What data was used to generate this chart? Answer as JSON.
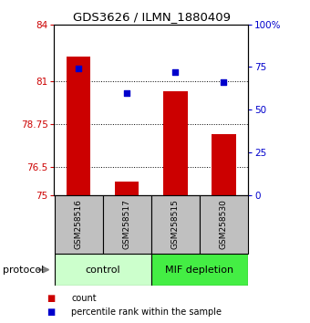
{
  "title": "GDS3626 / ILMN_1880409",
  "samples": [
    "GSM258516",
    "GSM258517",
    "GSM258515",
    "GSM258530"
  ],
  "bar_values": [
    82.3,
    75.72,
    80.5,
    78.2
  ],
  "percentile_values": [
    74,
    60,
    72,
    66
  ],
  "bar_color": "#cc0000",
  "percentile_color": "#0000cc",
  "ymin": 75,
  "ymax": 84,
  "yticks_left": [
    75,
    76.5,
    78.75,
    81,
    84
  ],
  "yticks_left_labels": [
    "75",
    "76.5",
    "78.75",
    "81",
    "84"
  ],
  "yticks_right": [
    0,
    25,
    50,
    75,
    100
  ],
  "yticks_right_labels": [
    "0",
    "25",
    "50",
    "75",
    "100%"
  ],
  "groups": [
    {
      "label": "control",
      "indices": [
        0,
        1
      ],
      "color": "#ccffcc"
    },
    {
      "label": "MIF depletion",
      "indices": [
        2,
        3
      ],
      "color": "#44ee44"
    }
  ],
  "protocol_label": "protocol",
  "background_color": "#ffffff",
  "sample_box_color": "#c0c0c0",
  "bar_width": 0.5
}
